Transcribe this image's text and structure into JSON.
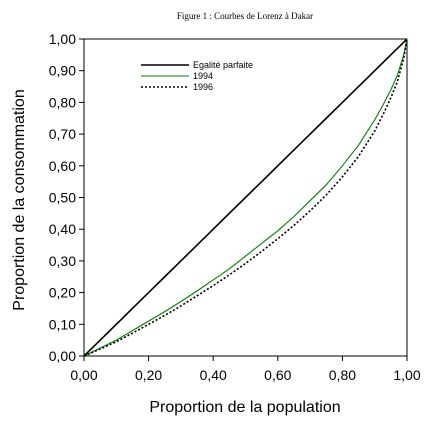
{
  "chart_data": {
    "type": "line",
    "title": "Figure 1 : Courbes de Lorenz à Dakar",
    "xlabel": "Proportion de la population",
    "ylabel": "Proportion de la consommation",
    "xlim": [
      0,
      1
    ],
    "ylim": [
      0,
      1
    ],
    "x_ticks": [
      0,
      0.2,
      0.4,
      0.6,
      0.8,
      1.0
    ],
    "x_tick_labels": [
      "0,00",
      "0,20",
      "0,40",
      "0,60",
      "0,80",
      "1,00"
    ],
    "y_ticks": [
      0,
      0.1,
      0.2,
      0.3,
      0.4,
      0.5,
      0.6,
      0.7,
      0.8,
      0.9,
      1.0
    ],
    "y_tick_labels": [
      "0,00",
      "0,10",
      "0,20",
      "0,30",
      "0,40",
      "0,50",
      "0,60",
      "0,70",
      "0,80",
      "0,90",
      "1,00"
    ],
    "grid": false,
    "legend_position": "top-left",
    "x": [
      0,
      0.05,
      0.1,
      0.15,
      0.2,
      0.25,
      0.3,
      0.35,
      0.4,
      0.45,
      0.5,
      0.55,
      0.6,
      0.65,
      0.7,
      0.75,
      0.8,
      0.85,
      0.9,
      0.93,
      0.95,
      0.97,
      0.99,
      1.0
    ],
    "series": [
      {
        "name": "Egalité parfaite",
        "color": "#000000",
        "style": "solid",
        "values": [
          0,
          0.05,
          0.1,
          0.15,
          0.2,
          0.25,
          0.3,
          0.35,
          0.4,
          0.45,
          0.5,
          0.55,
          0.6,
          0.65,
          0.7,
          0.75,
          0.8,
          0.85,
          0.9,
          0.93,
          0.95,
          0.97,
          0.99,
          1.0
        ]
      },
      {
        "name": "1994",
        "color": "#008000",
        "style": "solid",
        "values": [
          0,
          0.025,
          0.05,
          0.08,
          0.11,
          0.14,
          0.172,
          0.205,
          0.24,
          0.275,
          0.315,
          0.355,
          0.395,
          0.44,
          0.49,
          0.54,
          0.6,
          0.665,
          0.745,
          0.8,
          0.84,
          0.885,
          0.95,
          1.0
        ]
      },
      {
        "name": "1996",
        "color": "#000000",
        "style": "dotted",
        "values": [
          0,
          0.022,
          0.045,
          0.072,
          0.1,
          0.128,
          0.158,
          0.19,
          0.222,
          0.256,
          0.292,
          0.33,
          0.37,
          0.412,
          0.458,
          0.508,
          0.565,
          0.63,
          0.71,
          0.77,
          0.815,
          0.865,
          0.94,
          1.0
        ]
      }
    ]
  }
}
